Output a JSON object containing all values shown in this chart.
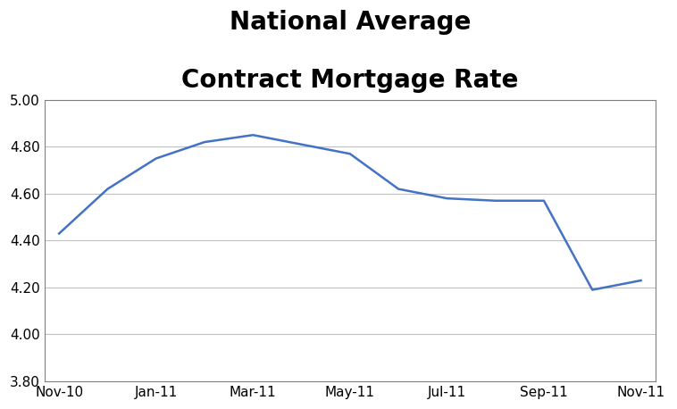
{
  "x_labels": [
    "Nov-10",
    "Jan-11",
    "Mar-11",
    "May-11",
    "Jul-11",
    "Sep-11",
    "Nov-11"
  ],
  "x_tick_pos": [
    0,
    2,
    4,
    6,
    8,
    10,
    12
  ],
  "data_x": [
    0,
    1,
    2,
    3,
    4,
    5,
    6,
    7,
    8,
    9,
    10,
    11,
    12
  ],
  "data_y": [
    4.43,
    4.62,
    4.75,
    4.82,
    4.85,
    4.81,
    4.77,
    4.62,
    4.58,
    4.57,
    4.57,
    4.19,
    4.23
  ],
  "line_color": "#4472C4",
  "line_width": 1.8,
  "title_line1": "National Average",
  "title_line2": "Contract Mortgage Rate",
  "title_fontsize": 20,
  "title_fontweight": "bold",
  "title_color": "#000000",
  "ylim": [
    3.8,
    5.0
  ],
  "yticks": [
    3.8,
    4.0,
    4.2,
    4.4,
    4.6,
    4.8,
    5.0
  ],
  "background_color": "#FFFFFF",
  "plot_bg_color": "#FFFFFF",
  "grid_color": "#C0C0C0",
  "grid_linewidth": 0.8,
  "tick_fontsize": 11,
  "spine_color": "#808080",
  "spine_linewidth": 0.8
}
